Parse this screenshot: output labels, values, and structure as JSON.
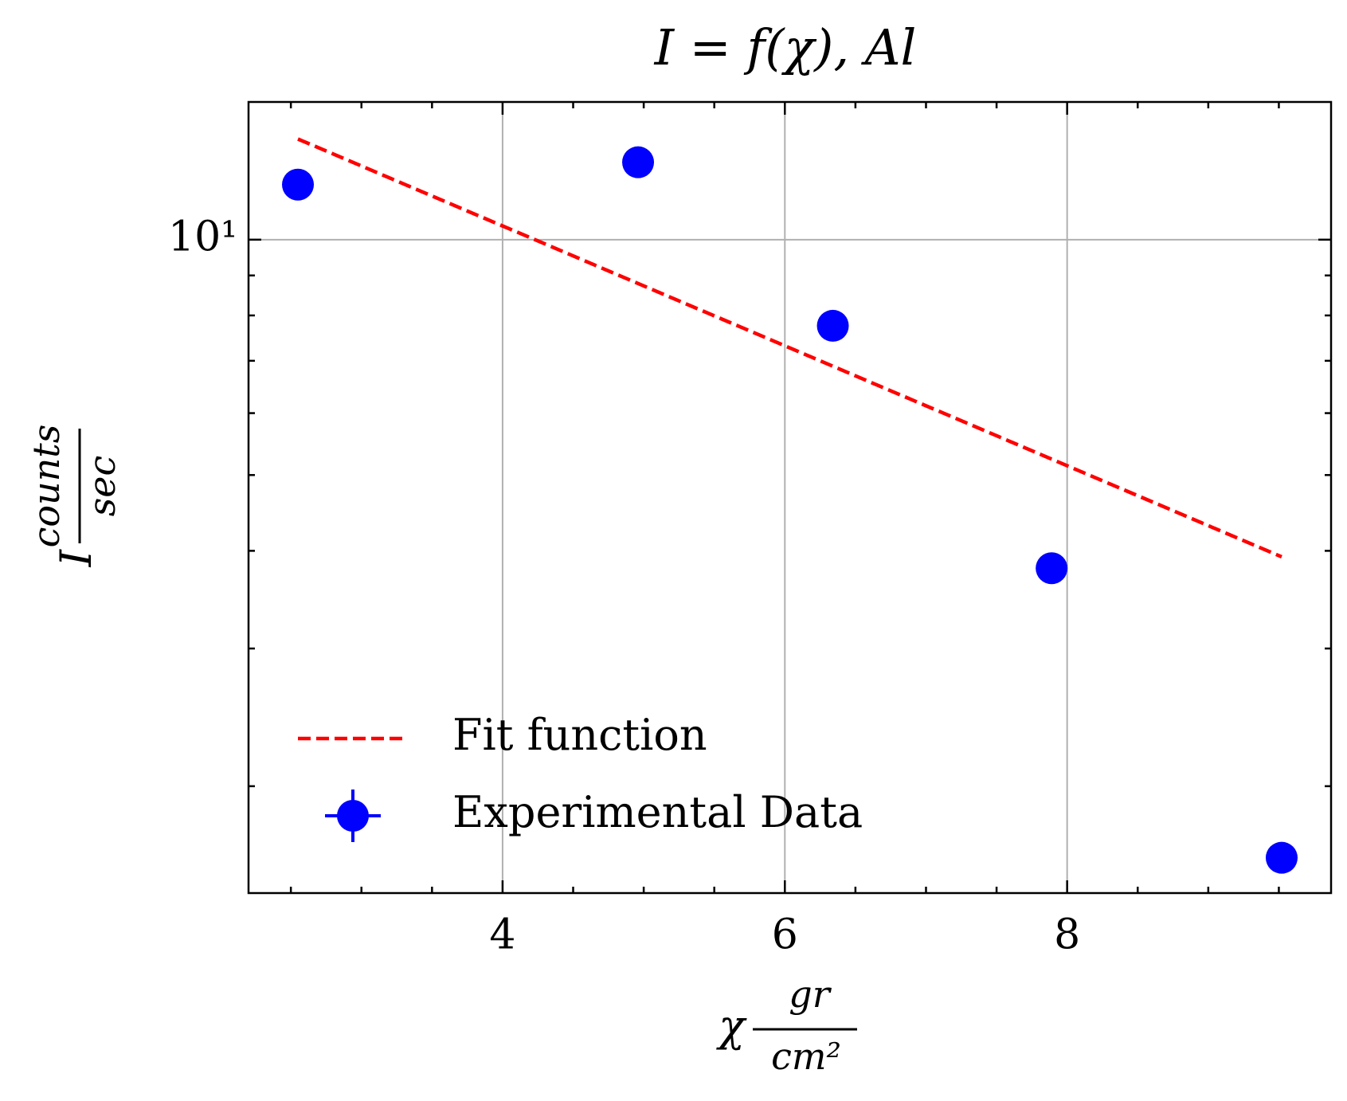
{
  "chart_data": {
    "type": "scatter",
    "title": "I = f(χ), Al",
    "xlabel": {
      "symbol": "χ",
      "numerator": "gr",
      "denominator": "cm²"
    },
    "ylabel": {
      "symbol": "I",
      "numerator": "counts",
      "denominator": "sec"
    },
    "xlim": [
      2.2,
      9.87
    ],
    "ylim": [
      1.46,
      15
    ],
    "yscale": "log",
    "xticks": [
      4,
      6,
      8
    ],
    "xminorticks": [
      2.5,
      3,
      3.5,
      4.5,
      5,
      5.5,
      6.5,
      7,
      7.5,
      8.5,
      9,
      9.5
    ],
    "yticks": [
      {
        "value": 10,
        "label": "10¹"
      }
    ],
    "yminorticks": [
      2,
      3,
      4,
      5,
      6,
      7,
      8,
      9
    ],
    "grid": true,
    "legend": "lower left",
    "series": [
      {
        "name": "Fit function",
        "mode": "line",
        "style": "dashed",
        "color": "#ff0000",
        "x": [
          2.55,
          9.52
        ],
        "values": [
          13.45,
          3.93
        ]
      },
      {
        "name": "Experimental Data",
        "mode": "markers",
        "color": "#0000ff",
        "x": [
          2.55,
          4.96,
          6.34,
          7.89,
          9.52
        ],
        "values": [
          11.76,
          12.56,
          7.76,
          3.8,
          1.62
        ]
      }
    ]
  }
}
